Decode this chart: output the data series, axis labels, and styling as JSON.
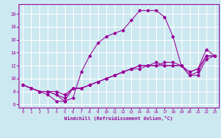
{
  "xlabel": "Windchill (Refroidissement éolien,°C)",
  "bg_color": "#cce8f0",
  "grid_color": "#ffffff",
  "line_color": "#990099",
  "xlim": [
    -0.5,
    23.5
  ],
  "ylim": [
    5.5,
    21.5
  ],
  "xticks": [
    0,
    1,
    2,
    3,
    4,
    5,
    6,
    7,
    8,
    9,
    10,
    11,
    12,
    13,
    14,
    15,
    16,
    17,
    18,
    19,
    20,
    21,
    22,
    23
  ],
  "yticks": [
    6,
    8,
    10,
    12,
    14,
    16,
    18,
    20
  ],
  "line1_x": [
    0,
    1,
    2,
    3,
    4,
    5,
    6,
    7,
    8,
    9,
    10,
    11,
    12,
    13,
    14,
    15,
    16,
    17,
    18,
    19,
    20,
    21,
    22,
    23
  ],
  "line1_y": [
    9.0,
    8.5,
    8.0,
    7.5,
    6.5,
    6.5,
    7.0,
    11.0,
    13.5,
    15.5,
    16.5,
    17.0,
    17.5,
    19.0,
    20.5,
    20.5,
    20.5,
    19.5,
    16.5,
    12.0,
    11.0,
    11.5,
    14.5,
    13.5
  ],
  "line2_x": [
    0,
    1,
    2,
    3,
    4,
    5,
    6,
    7,
    8,
    9,
    10,
    11,
    12,
    13,
    14,
    15,
    16,
    17,
    18,
    19,
    20,
    21,
    22,
    23
  ],
  "line2_y": [
    9.0,
    8.5,
    8.0,
    8.0,
    7.5,
    6.5,
    8.5,
    8.5,
    9.0,
    9.5,
    10.0,
    10.5,
    11.0,
    11.5,
    11.5,
    12.0,
    12.5,
    12.0,
    12.0,
    12.0,
    10.5,
    10.5,
    13.0,
    13.5
  ],
  "line3_x": [
    0,
    1,
    2,
    3,
    4,
    5,
    6,
    7,
    8,
    9,
    10,
    11,
    12,
    13,
    14,
    15,
    16,
    17,
    18,
    19,
    20,
    21,
    22,
    23
  ],
  "line3_y": [
    9.0,
    8.5,
    8.0,
    8.0,
    7.5,
    7.0,
    8.5,
    8.5,
    9.0,
    9.5,
    10.0,
    10.5,
    11.0,
    11.5,
    12.0,
    12.0,
    12.0,
    12.0,
    12.0,
    12.0,
    10.5,
    11.0,
    13.5,
    13.5
  ],
  "line4_x": [
    0,
    1,
    2,
    3,
    4,
    5,
    6,
    7,
    8,
    9,
    10,
    11,
    12,
    13,
    14,
    15,
    16,
    17,
    18,
    19,
    20,
    21,
    22,
    23
  ],
  "line4_y": [
    9.0,
    8.5,
    8.0,
    8.0,
    8.0,
    7.5,
    8.5,
    8.5,
    9.0,
    9.5,
    10.0,
    10.5,
    11.0,
    11.5,
    12.0,
    12.0,
    12.0,
    12.5,
    12.5,
    12.0,
    11.0,
    11.5,
    13.5,
    13.5
  ]
}
